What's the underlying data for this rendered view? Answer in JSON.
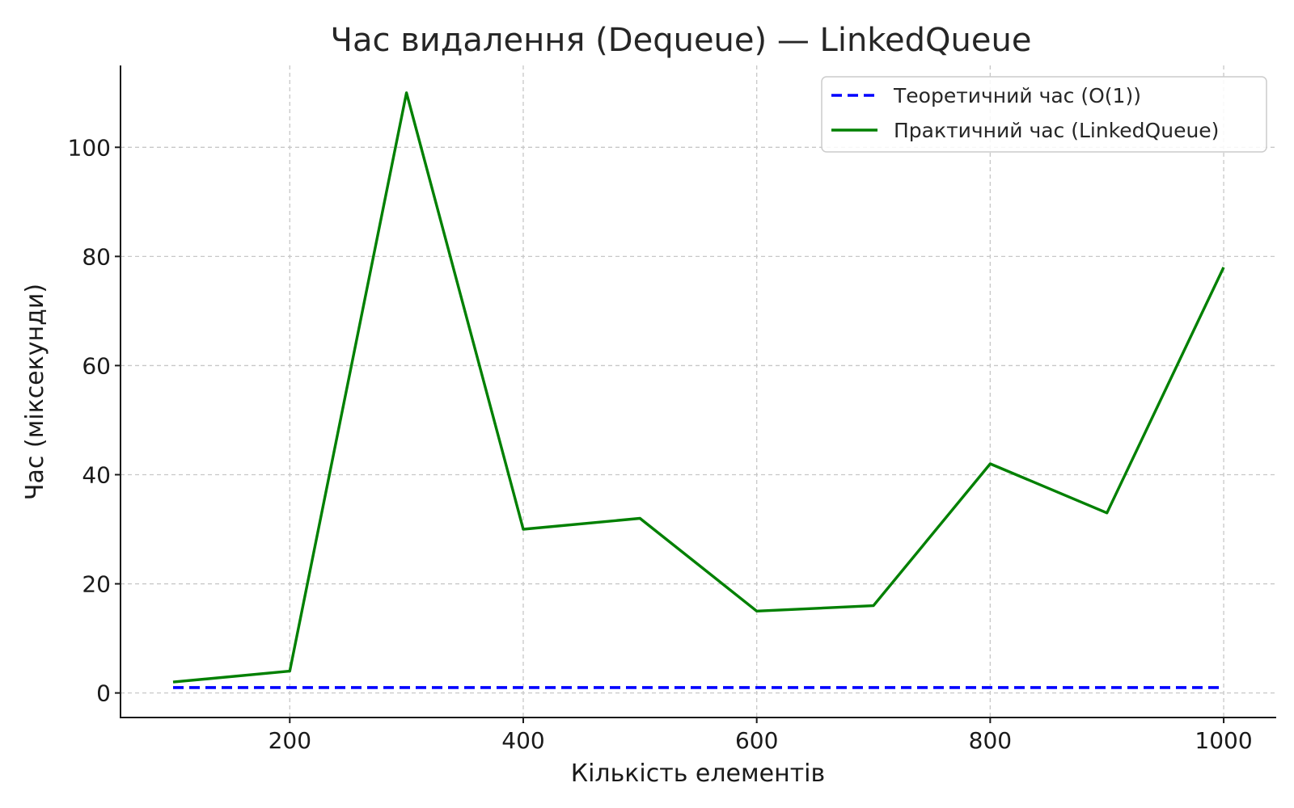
{
  "chart_data": {
    "type": "line",
    "title": "Час видалення (Dequeue) — LinkedQueue",
    "xlabel": "Кількість елементів",
    "ylabel": "Час (мiксекунди)",
    "xlim": [
      55,
      1045
    ],
    "ylim": [
      -4.5,
      115
    ],
    "xticks": [
      200,
      400,
      600,
      800,
      1000
    ],
    "yticks": [
      0,
      20,
      40,
      60,
      80,
      100
    ],
    "grid": true,
    "legend_position": "top-right",
    "x": [
      100,
      200,
      300,
      400,
      500,
      600,
      700,
      800,
      900,
      1000
    ],
    "series": [
      {
        "name": "Теоретичний час (O(1))",
        "color": "#0000ff",
        "style": "dashed",
        "values": [
          1,
          1,
          1,
          1,
          1,
          1,
          1,
          1,
          1,
          1
        ]
      },
      {
        "name": "Практичний час (LinkedQueue)",
        "color": "#008000",
        "style": "solid",
        "values": [
          2,
          4,
          110,
          30,
          32,
          15,
          16,
          42,
          33,
          78
        ]
      }
    ]
  }
}
